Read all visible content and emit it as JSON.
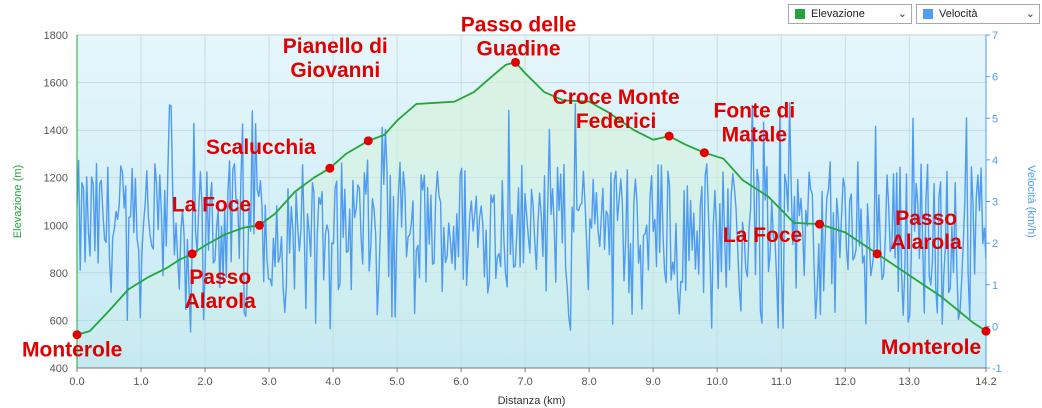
{
  "legend": [
    {
      "label": "Elevazione",
      "color": "#22a63a",
      "icon": "chevron-down-icon"
    },
    {
      "label": "Velocità",
      "color": "#4f9bf0",
      "icon": "chevron-down-icon"
    }
  ],
  "chart_data": {
    "type": "line",
    "xlabel": "Distanza  (km)",
    "ylabel": "Elevazione (m)",
    "y2label": "Velocità  (km/h)",
    "xlim": [
      0,
      14.2
    ],
    "ylim": [
      400,
      1800
    ],
    "y2lim": [
      -1,
      7
    ],
    "x_ticks": [
      "0.0",
      "1.0",
      "2.0",
      "3.0",
      "4.0",
      "5.0",
      "6.0",
      "7.0",
      "8.0",
      "9.0",
      "10.0",
      "11.0",
      "12.0",
      "13.0",
      "14.2"
    ],
    "y_ticks": [
      "400",
      "600",
      "800",
      "1000",
      "1200",
      "1400",
      "1600",
      "1800"
    ],
    "y2_ticks": [
      "-1",
      "0",
      "1",
      "2",
      "3",
      "4",
      "5",
      "6",
      "7"
    ],
    "grid": true,
    "legend_position": "top-right",
    "series": [
      {
        "name": "Elevazione",
        "axis": "left",
        "color": "#22a63a",
        "x": [
          0,
          0.2,
          0.5,
          0.8,
          1.1,
          1.4,
          1.6,
          1.8,
          2.0,
          2.3,
          2.6,
          2.85,
          3.1,
          3.4,
          3.7,
          3.95,
          4.2,
          4.55,
          4.8,
          5.0,
          5.3,
          5.6,
          5.9,
          6.2,
          6.5,
          6.7,
          6.85,
          7.0,
          7.3,
          7.6,
          8.0,
          8.3,
          8.7,
          9.0,
          9.25,
          9.5,
          9.8,
          10.1,
          10.4,
          10.8,
          11.2,
          11.6,
          12.0,
          12.5,
          13.0,
          13.5,
          14.0,
          14.2
        ],
        "y": [
          540,
          555,
          640,
          730,
          780,
          820,
          855,
          880,
          915,
          960,
          990,
          1000,
          1050,
          1140,
          1200,
          1240,
          1300,
          1355,
          1380,
          1440,
          1510,
          1515,
          1520,
          1560,
          1630,
          1675,
          1685,
          1640,
          1560,
          1525,
          1520,
          1475,
          1400,
          1360,
          1375,
          1340,
          1305,
          1280,
          1190,
          1120,
          1010,
          1005,
          970,
          880,
          790,
          700,
          590,
          555
        ]
      },
      {
        "name": "Velocità",
        "axis": "right",
        "color": "#4f9bf0",
        "generated": "noise",
        "baseline": 2.4,
        "amplitude": 1.6,
        "min": -0.15,
        "max": 5.5
      }
    ],
    "annotations": [
      {
        "text": [
          "Monterole"
        ],
        "x": 0.0,
        "y": 540
      },
      {
        "text": [
          "Passo",
          "Alarola"
        ],
        "x": 1.8,
        "y": 880
      },
      {
        "text": [
          "La Foce"
        ],
        "x": 2.85,
        "y": 1000
      },
      {
        "text": [
          "Scalucchia"
        ],
        "x": 3.95,
        "y": 1240
      },
      {
        "text": [
          "Pianello di",
          "Giovanni"
        ],
        "x": 4.55,
        "y": 1355
      },
      {
        "text": [
          "Passo delle",
          "Guadine"
        ],
        "x": 6.85,
        "y": 1685
      },
      {
        "text": [
          "Croce Monte",
          "Federici"
        ],
        "x": 9.25,
        "y": 1375
      },
      {
        "text": [
          "Fonte di",
          "Matale"
        ],
        "x": 9.8,
        "y": 1305
      },
      {
        "text": [
          "La Foce"
        ],
        "x": 11.6,
        "y": 1005
      },
      {
        "text": [
          "Passo",
          "Alarola"
        ],
        "x": 12.5,
        "y": 880
      },
      {
        "text": [
          "Monterole"
        ],
        "x": 14.2,
        "y": 555
      }
    ]
  }
}
